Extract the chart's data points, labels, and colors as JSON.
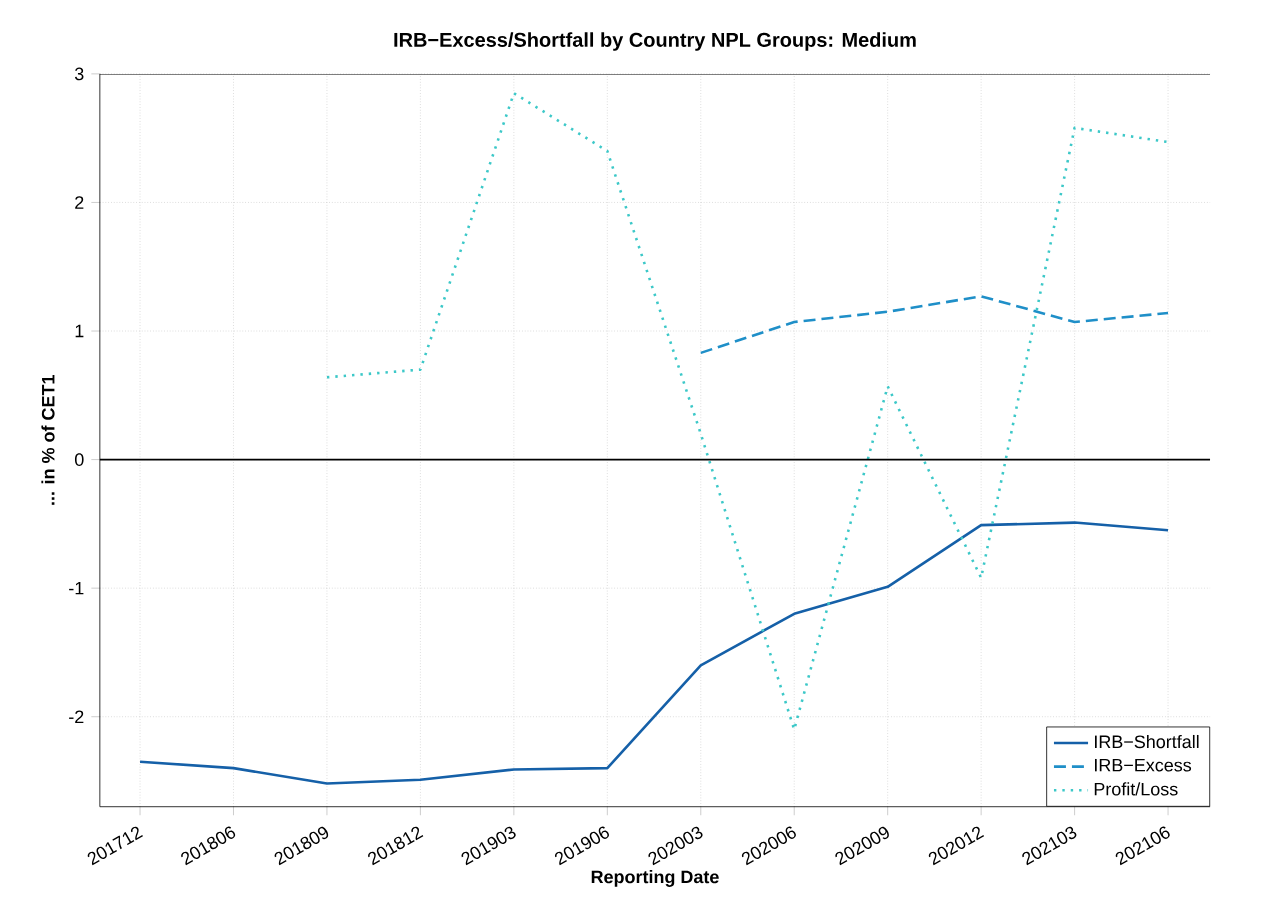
{
  "chart_data": {
    "type": "line",
    "title": "IRB−Excess/Shortfall by Country NPL Groups: Medium",
    "xlabel": "Reporting Date",
    "ylabel": "... in % of CET1",
    "categories": [
      "201712",
      "201806",
      "201809",
      "201812",
      "201903",
      "201906",
      "202003",
      "202006",
      "202009",
      "202012",
      "202103",
      "202106"
    ],
    "series": [
      {
        "name": "IRB−Shortfall",
        "color": "#1560a8",
        "line_style": "solid",
        "values": [
          -2.35,
          -2.4,
          -2.52,
          -2.49,
          -2.41,
          -2.4,
          -1.6,
          -1.2,
          -0.99,
          -0.51,
          -0.49,
          -0.55
        ]
      },
      {
        "name": "IRB−Excess",
        "color": "#1f8fc8",
        "line_style": "dashed",
        "values": [
          null,
          null,
          null,
          null,
          null,
          null,
          0.83,
          1.07,
          1.15,
          1.27,
          1.07,
          1.14
        ]
      },
      {
        "name": "Profit/Loss",
        "color": "#3cc8c8",
        "line_style": "dotted",
        "values": [
          null,
          null,
          0.64,
          0.7,
          2.85,
          2.4,
          0.2,
          -2.1,
          0.57,
          -0.92,
          2.58,
          2.47
        ]
      }
    ],
    "ylim": [
      -2.7,
      3
    ],
    "yticks": [
      -2,
      -1,
      0,
      1,
      2,
      3
    ],
    "ref_lines": [
      {
        "axis": "y",
        "value": 0,
        "color": "#000000"
      }
    ],
    "grid": true,
    "legend": "bottom right",
    "marker": "none"
  }
}
